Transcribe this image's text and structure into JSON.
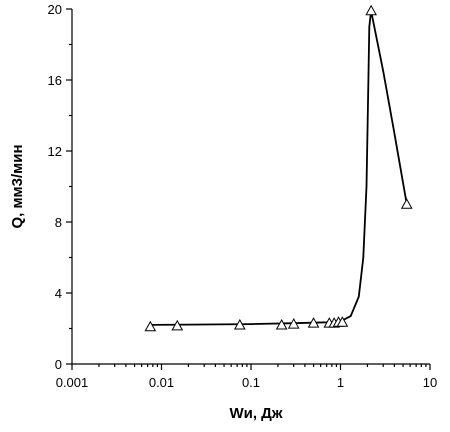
{
  "chart_data": {
    "type": "scatter",
    "xlabel": "Wи, Дж",
    "ylabel": "Q, мм3/мин",
    "xscale": "log",
    "xlim": [
      0.001,
      10
    ],
    "ylim": [
      0,
      20
    ],
    "xticks": [
      "0.001",
      "0.01",
      "0.1",
      "1",
      "10"
    ],
    "yticks": [
      "0",
      "4",
      "8",
      "12",
      "16",
      "20"
    ],
    "grid": false,
    "marker": "open-triangle",
    "series": [
      {
        "x": [
          0.0075,
          0.015,
          0.075,
          0.22,
          0.3,
          0.5,
          0.75,
          0.85,
          0.95,
          1.05,
          2.2,
          5.5
        ],
        "y": [
          2.1,
          2.15,
          2.2,
          2.2,
          2.25,
          2.3,
          2.3,
          2.3,
          2.35,
          2.35,
          19.9,
          9.0
        ]
      }
    ],
    "curve": {
      "x": [
        0.0075,
        0.02,
        0.1,
        0.3,
        0.7,
        1.0,
        1.3,
        1.6,
        1.8,
        1.95,
        2.05,
        2.1,
        2.2,
        3.0,
        4.0,
        5.5
      ],
      "y": [
        2.2,
        2.22,
        2.25,
        2.3,
        2.35,
        2.4,
        2.7,
        3.8,
        6.0,
        10.0,
        16.0,
        19.0,
        19.9,
        16.5,
        13.0,
        9.0
      ]
    }
  }
}
